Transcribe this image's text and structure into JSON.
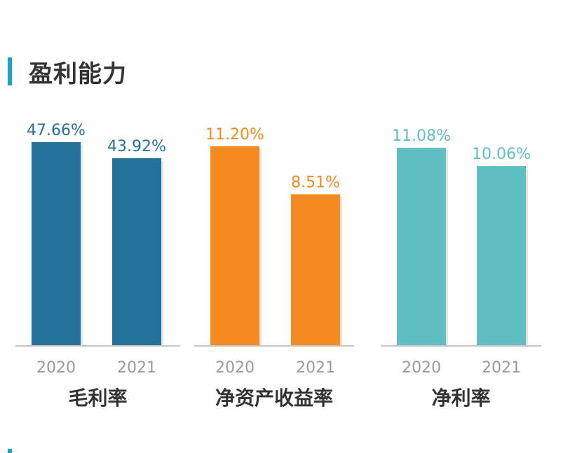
{
  "title": "盈利能力",
  "accent_color": "#1aa3c8",
  "chart_data": [
    {
      "type": "bar",
      "category_label": "毛利率",
      "categories": [
        "2020",
        "2021"
      ],
      "values": [
        47.66,
        43.92
      ],
      "value_labels": [
        "47.66%",
        "43.92%"
      ],
      "bar_color": "#24719c",
      "label_color": "#24719c"
    },
    {
      "type": "bar",
      "category_label": "净资产收益率",
      "categories": [
        "2020",
        "2021"
      ],
      "values": [
        11.2,
        8.51
      ],
      "value_labels": [
        "11.20%",
        "8.51%"
      ],
      "bar_color": "#f58a1f",
      "label_color": "#f58a1f"
    },
    {
      "type": "bar",
      "category_label": "净利率",
      "categories": [
        "2020",
        "2021"
      ],
      "values": [
        11.08,
        10.06
      ],
      "value_labels": [
        "11.08%",
        "10.06%"
      ],
      "bar_color": "#5fbfc1",
      "label_color": "#5fbfc1"
    }
  ]
}
